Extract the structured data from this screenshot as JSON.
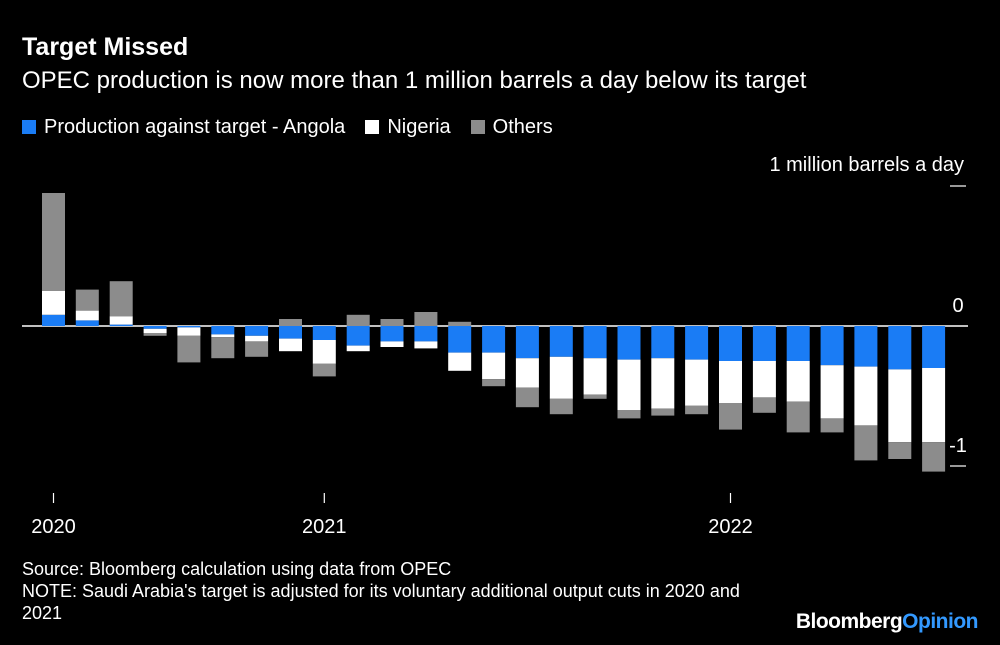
{
  "colors": {
    "background": "#000000",
    "angola": "#1a7cf5",
    "nigeria": "#ffffff",
    "others": "#8c8c8c",
    "text": "#ffffff",
    "brand_opinion": "#3399ff"
  },
  "title": "Target Missed",
  "subtitle": "OPEC production is now more than 1 million barrels a day below its target",
  "legend": {
    "angola": "Production against target - Angola",
    "nigeria": "Nigeria",
    "others": "Others"
  },
  "footer": {
    "source": "Source: Bloomberg calculation using data from OPEC",
    "note": "NOTE: Saudi Arabia's target is adjusted for its voluntary additional output cuts in 2020 and 2021"
  },
  "brand": {
    "name": "Bloomberg",
    "suffix": "Opinion"
  },
  "chart_data": {
    "type": "bar",
    "stacked": true,
    "title": "Target Missed",
    "subtitle": "OPEC production is now more than 1 million barrels a day below its target",
    "unit_label": "1 million barrels a day",
    "ylim": [
      -1.2,
      1.0
    ],
    "y_ticks": [
      {
        "value": 1,
        "label": ""
      },
      {
        "value": 0,
        "label": "0"
      },
      {
        "value": -1,
        "label": "-1"
      }
    ],
    "x_ticks": [
      {
        "index": 0,
        "label": "2020"
      },
      {
        "index": 8,
        "label": "2021"
      },
      {
        "index": 20,
        "label": "2022"
      }
    ],
    "categories": [
      "2020-05",
      "2020-06",
      "2020-07",
      "2020-08",
      "2020-09",
      "2020-10",
      "2020-11",
      "2020-12",
      "2021-01",
      "2021-02",
      "2021-03",
      "2021-04",
      "2021-05",
      "2021-06",
      "2021-07",
      "2021-08",
      "2021-09",
      "2021-10",
      "2021-11",
      "2021-12",
      "2022-01",
      "2022-02",
      "2022-03",
      "2022-04",
      "2022-05",
      "2022-06",
      "2022-07"
    ],
    "series": [
      {
        "name": "Angola",
        "key": "angola",
        "values": [
          0.08,
          0.04,
          0.01,
          -0.02,
          -0.01,
          -0.06,
          -0.07,
          -0.09,
          -0.1,
          -0.14,
          -0.11,
          -0.11,
          -0.19,
          -0.19,
          -0.23,
          -0.22,
          -0.23,
          -0.24,
          -0.23,
          -0.24,
          -0.25,
          -0.25,
          -0.25,
          -0.28,
          -0.29,
          -0.31,
          -0.3
        ]
      },
      {
        "name": "Nigeria",
        "key": "nigeria",
        "values": [
          0.17,
          0.07,
          0.06,
          -0.03,
          -0.06,
          -0.02,
          -0.04,
          -0.09,
          -0.17,
          -0.04,
          -0.04,
          -0.05,
          -0.13,
          -0.19,
          -0.21,
          -0.3,
          -0.26,
          -0.36,
          -0.36,
          -0.33,
          -0.3,
          -0.26,
          -0.29,
          -0.38,
          -0.42,
          -0.52,
          -0.53
        ]
      },
      {
        "name": "Others",
        "key": "others",
        "values": [
          0.7,
          0.15,
          0.25,
          -0.02,
          -0.19,
          -0.15,
          -0.11,
          0.05,
          -0.09,
          0.08,
          0.05,
          0.1,
          0.03,
          -0.05,
          -0.14,
          -0.11,
          -0.03,
          -0.06,
          -0.05,
          -0.06,
          -0.19,
          -0.11,
          -0.22,
          -0.1,
          -0.25,
          -0.12,
          -0.21
        ]
      }
    ]
  }
}
